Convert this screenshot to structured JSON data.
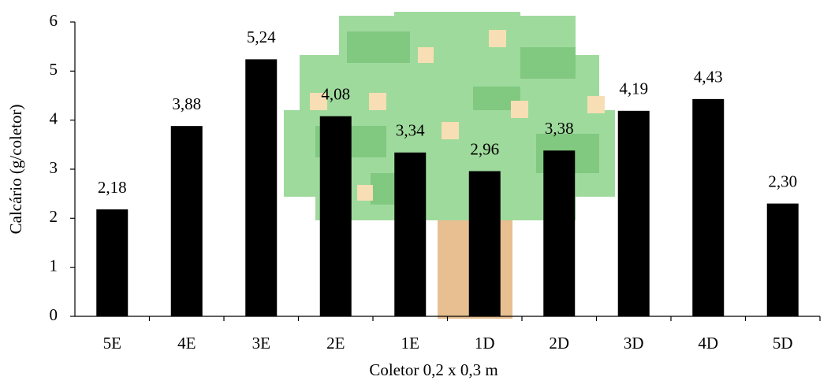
{
  "chart_data": {
    "type": "bar",
    "categories": [
      "5E",
      "4E",
      "3E",
      "2E",
      "1E",
      "1D",
      "2D",
      "3D",
      "4D",
      "5D"
    ],
    "values": [
      2.18,
      3.88,
      5.24,
      4.08,
      3.34,
      2.96,
      3.38,
      4.19,
      4.43,
      2.3
    ],
    "value_labels": [
      "2,18",
      "3,88",
      "5,24",
      "4,08",
      "3,34",
      "2,96",
      "3,38",
      "4,19",
      "4,43",
      "2,30"
    ],
    "color": "#000000",
    "x_label": "Coletor 0,2 x 0,3 m",
    "y_label": "Calcário (g/coletor)",
    "ylim": [
      0,
      6
    ],
    "yticks": [
      0,
      1,
      2,
      3,
      4,
      5,
      6
    ],
    "grid": false
  }
}
